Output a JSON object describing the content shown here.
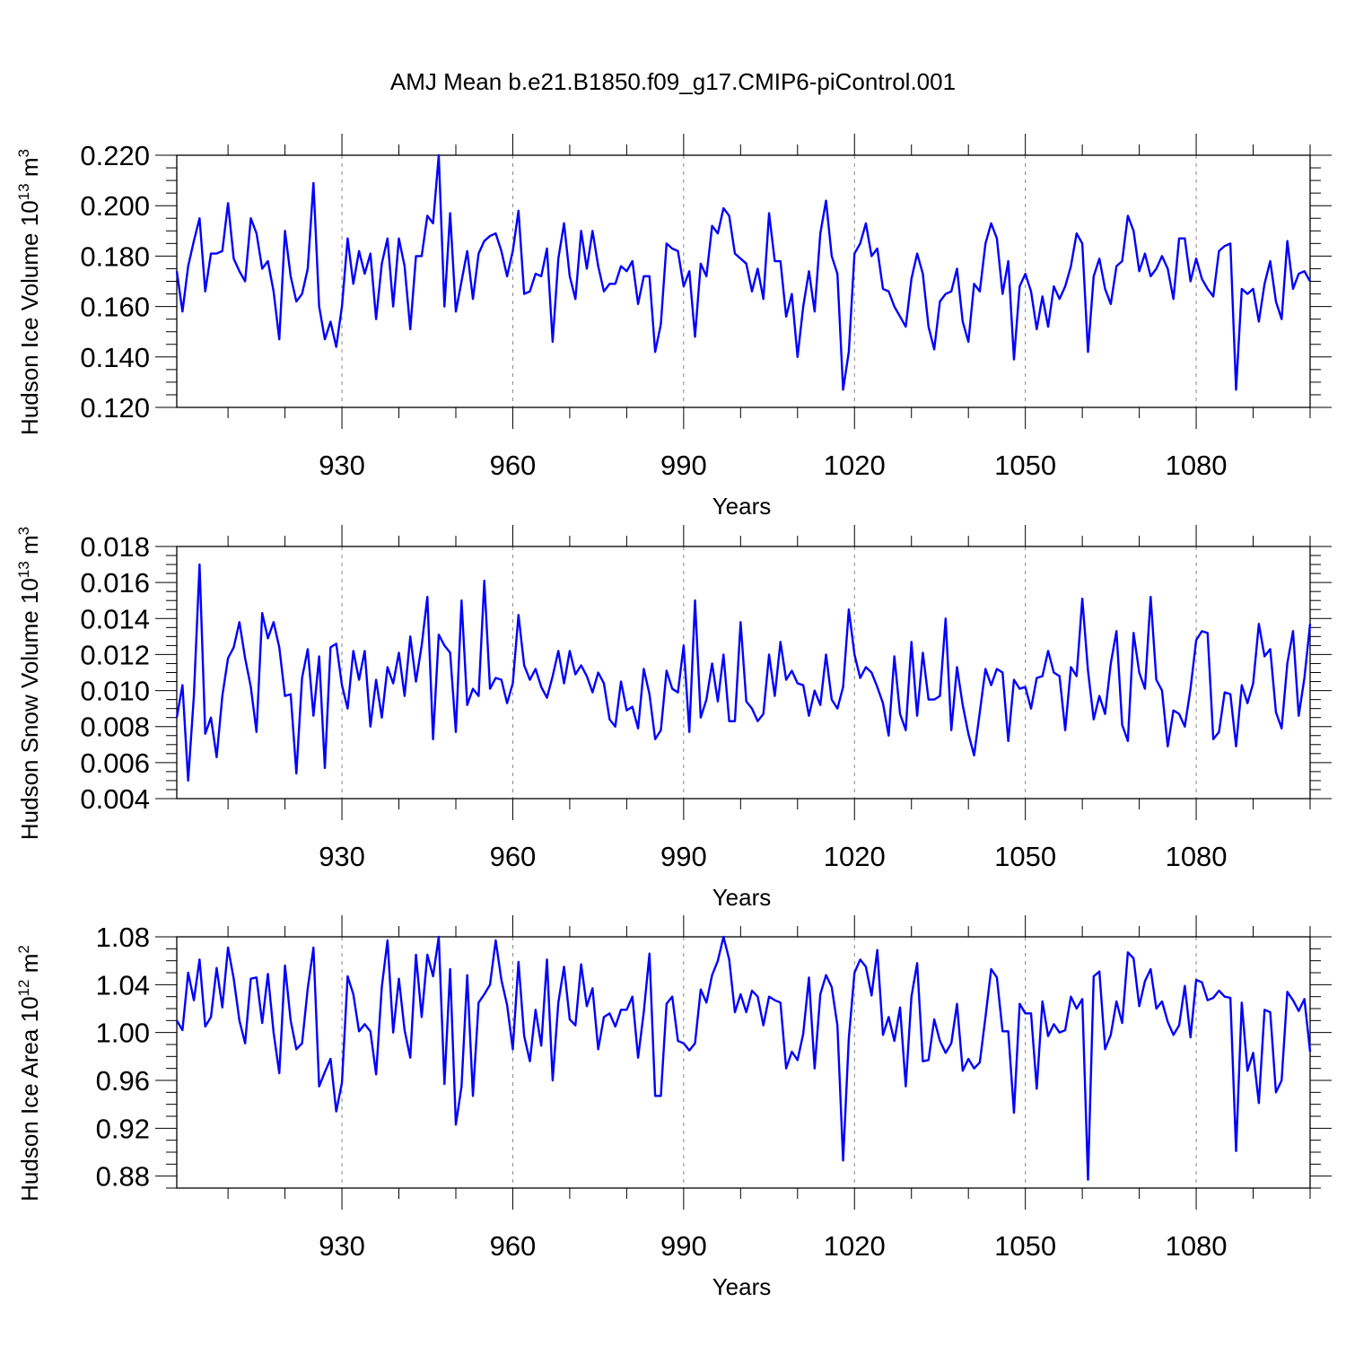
{
  "title": "AMJ Mean b.e21.B1850.f09_g17.CMIP6-piControl.001",
  "line_color": "#0000ff",
  "chart_data": [
    {
      "type": "line",
      "name": "ice-volume",
      "ylabel_main": "Hudson Ice Volume 10",
      "ylabel_exp": "13",
      "ylabel_unit": " m",
      "ylabel_unit_exp": "3",
      "xlabel": "Years",
      "xlim": [
        901,
        1100
      ],
      "ylim": [
        0.12,
        0.22
      ],
      "yticks": [
        "0.120",
        "0.140",
        "0.160",
        "0.180",
        "0.200",
        "0.220"
      ],
      "xticks": [
        "930",
        "960",
        "990",
        "1020",
        "1050",
        "1080"
      ],
      "x_start": 901,
      "values": [
        0.174,
        0.158,
        0.176,
        0.186,
        0.195,
        0.166,
        0.181,
        0.181,
        0.182,
        0.201,
        0.179,
        0.174,
        0.17,
        0.195,
        0.189,
        0.175,
        0.178,
        0.166,
        0.147,
        0.19,
        0.172,
        0.162,
        0.165,
        0.175,
        0.209,
        0.16,
        0.147,
        0.154,
        0.144,
        0.16,
        0.187,
        0.169,
        0.182,
        0.173,
        0.181,
        0.155,
        0.177,
        0.187,
        0.16,
        0.187,
        0.176,
        0.151,
        0.18,
        0.18,
        0.196,
        0.193,
        0.22,
        0.16,
        0.197,
        0.158,
        0.17,
        0.182,
        0.163,
        0.181,
        0.186,
        0.188,
        0.189,
        0.182,
        0.172,
        0.182,
        0.198,
        0.165,
        0.166,
        0.173,
        0.172,
        0.183,
        0.146,
        0.179,
        0.193,
        0.172,
        0.163,
        0.19,
        0.175,
        0.19,
        0.176,
        0.166,
        0.169,
        0.169,
        0.176,
        0.174,
        0.178,
        0.161,
        0.172,
        0.172,
        0.142,
        0.153,
        0.185,
        0.183,
        0.182,
        0.168,
        0.174,
        0.148,
        0.177,
        0.172,
        0.192,
        0.189,
        0.199,
        0.196,
        0.181,
        0.179,
        0.177,
        0.166,
        0.175,
        0.163,
        0.197,
        0.178,
        0.178,
        0.156,
        0.165,
        0.14,
        0.16,
        0.174,
        0.158,
        0.189,
        0.202,
        0.18,
        0.173,
        0.127,
        0.142,
        0.181,
        0.185,
        0.193,
        0.18,
        0.183,
        0.167,
        0.166,
        0.16,
        0.156,
        0.152,
        0.171,
        0.181,
        0.173,
        0.152,
        0.143,
        0.162,
        0.165,
        0.166,
        0.175,
        0.154,
        0.146,
        0.169,
        0.166,
        0.185,
        0.193,
        0.187,
        0.165,
        0.178,
        0.139,
        0.168,
        0.173,
        0.166,
        0.151,
        0.164,
        0.152,
        0.168,
        0.163,
        0.168,
        0.176,
        0.189,
        0.185,
        0.142,
        0.172,
        0.179,
        0.167,
        0.161,
        0.176,
        0.178,
        0.196,
        0.19,
        0.174,
        0.181,
        0.172,
        0.175,
        0.18,
        0.175,
        0.163,
        0.187,
        0.187,
        0.17,
        0.179,
        0.171,
        0.167,
        0.164,
        0.182,
        0.184,
        0.185,
        0.127,
        0.167,
        0.165,
        0.167,
        0.154,
        0.169,
        0.178,
        0.162,
        0.155,
        0.186,
        0.167,
        0.173,
        0.174,
        0.17
      ]
    },
    {
      "type": "line",
      "name": "snow-volume",
      "ylabel_main": "Hudson Snow Volume 10",
      "ylabel_exp": "13",
      "ylabel_unit": " m",
      "ylabel_unit_exp": "3",
      "xlabel": "Years",
      "xlim": [
        901,
        1100
      ],
      "ylim": [
        0.004,
        0.018
      ],
      "yticks": [
        "0.004",
        "0.006",
        "0.008",
        "0.010",
        "0.012",
        "0.014",
        "0.016",
        "0.018"
      ],
      "xticks": [
        "930",
        "960",
        "990",
        "1020",
        "1050",
        "1080"
      ],
      "x_start": 901,
      "values": [
        0.0085,
        0.0103,
        0.005,
        0.0097,
        0.017,
        0.0076,
        0.0085,
        0.0063,
        0.0097,
        0.0118,
        0.0124,
        0.0138,
        0.0118,
        0.0102,
        0.0077,
        0.0143,
        0.0129,
        0.0138,
        0.0124,
        0.0097,
        0.0098,
        0.0054,
        0.0107,
        0.0123,
        0.0086,
        0.0119,
        0.0057,
        0.0124,
        0.0126,
        0.0103,
        0.009,
        0.0122,
        0.0106,
        0.0122,
        0.008,
        0.0106,
        0.0085,
        0.0113,
        0.0104,
        0.0121,
        0.0097,
        0.013,
        0.0105,
        0.0125,
        0.0152,
        0.0073,
        0.0131,
        0.0125,
        0.0121,
        0.0077,
        0.015,
        0.0092,
        0.0101,
        0.0097,
        0.0161,
        0.0101,
        0.0107,
        0.0106,
        0.0093,
        0.0104,
        0.0142,
        0.0114,
        0.0106,
        0.0112,
        0.0102,
        0.0096,
        0.0108,
        0.0122,
        0.0104,
        0.0122,
        0.0109,
        0.0114,
        0.0108,
        0.0099,
        0.011,
        0.0104,
        0.0084,
        0.008,
        0.0105,
        0.0089,
        0.0091,
        0.0079,
        0.0112,
        0.0098,
        0.0073,
        0.0078,
        0.0111,
        0.0101,
        0.0099,
        0.0125,
        0.0077,
        0.015,
        0.0085,
        0.0095,
        0.0115,
        0.0094,
        0.012,
        0.0083,
        0.0083,
        0.0138,
        0.0094,
        0.009,
        0.0083,
        0.0087,
        0.012,
        0.0097,
        0.0127,
        0.0106,
        0.0111,
        0.0104,
        0.0103,
        0.0086,
        0.01,
        0.0092,
        0.012,
        0.0095,
        0.009,
        0.0102,
        0.0145,
        0.012,
        0.0107,
        0.0113,
        0.011,
        0.0102,
        0.0093,
        0.0075,
        0.0119,
        0.0087,
        0.0078,
        0.0127,
        0.0086,
        0.0121,
        0.0095,
        0.0095,
        0.0097,
        0.014,
        0.0078,
        0.0113,
        0.0092,
        0.0076,
        0.0064,
        0.0088,
        0.0112,
        0.0103,
        0.0112,
        0.011,
        0.0072,
        0.0106,
        0.0101,
        0.0102,
        0.009,
        0.0107,
        0.0108,
        0.0122,
        0.011,
        0.0108,
        0.0078,
        0.0113,
        0.0108,
        0.0151,
        0.0111,
        0.0084,
        0.0097,
        0.0087,
        0.0115,
        0.0133,
        0.0081,
        0.0072,
        0.0132,
        0.011,
        0.0101,
        0.0152,
        0.0106,
        0.01,
        0.0069,
        0.0089,
        0.0087,
        0.008,
        0.0101,
        0.0128,
        0.0133,
        0.0132,
        0.0073,
        0.0077,
        0.0099,
        0.0098,
        0.0069,
        0.0103,
        0.0093,
        0.0104,
        0.0137,
        0.0119,
        0.0123,
        0.0088,
        0.0079,
        0.0115,
        0.0133,
        0.0086,
        0.0107,
        0.0137
      ]
    },
    {
      "type": "line",
      "name": "ice-area",
      "ylabel_main": "Hudson Ice Area 10",
      "ylabel_exp": "12",
      "ylabel_unit": " m",
      "ylabel_unit_exp": "2",
      "xlabel": "Years",
      "xlim": [
        901,
        1100
      ],
      "ylim": [
        0.87,
        1.08
      ],
      "yticks": [
        "0.88",
        "0.92",
        "0.96",
        "1.00",
        "1.04",
        "1.08"
      ],
      "xticks": [
        "930",
        "960",
        "990",
        "1020",
        "1050",
        "1080"
      ],
      "x_start": 901,
      "values": [
        1.01,
        1.002,
        1.05,
        1.027,
        1.061,
        1.005,
        1.013,
        1.054,
        1.021,
        1.071,
        1.045,
        1.01,
        0.991,
        1.045,
        1.046,
        1.008,
        1.049,
        1.0,
        0.966,
        1.056,
        1.01,
        0.986,
        0.991,
        1.037,
        1.071,
        0.955,
        0.967,
        0.978,
        0.934,
        0.958,
        1.047,
        1.032,
        1.001,
        1.007,
        1.001,
        0.965,
        1.038,
        1.077,
        1.0,
        1.045,
        1.002,
        0.979,
        1.065,
        1.013,
        1.065,
        1.047,
        1.08,
        0.957,
        1.053,
        0.923,
        0.955,
        1.048,
        0.947,
        1.025,
        1.032,
        1.04,
        1.077,
        1.044,
        1.023,
        0.986,
        1.059,
        0.997,
        0.976,
        1.019,
        0.989,
        1.061,
        0.96,
        1.025,
        1.055,
        1.011,
        1.006,
        1.057,
        1.022,
        1.037,
        0.986,
        1.013,
        1.016,
        1.005,
        1.019,
        1.019,
        1.03,
        0.979,
        1.017,
        1.066,
        0.947,
        0.947,
        1.024,
        1.03,
        0.993,
        0.991,
        0.985,
        0.991,
        1.036,
        1.025,
        1.048,
        1.06,
        1.08,
        1.061,
        1.017,
        1.032,
        1.017,
        1.035,
        1.03,
        1.006,
        1.03,
        1.027,
        1.025,
        0.97,
        0.984,
        0.977,
        0.999,
        1.046,
        0.97,
        1.032,
        1.048,
        1.038,
        1.006,
        0.893,
        0.995,
        1.05,
        1.061,
        1.055,
        1.031,
        1.069,
        0.998,
        1.013,
        0.993,
        1.021,
        0.955,
        1.03,
        1.058,
        0.976,
        0.977,
        1.011,
        0.993,
        0.983,
        0.991,
        1.024,
        0.968,
        0.978,
        0.97,
        0.975,
        1.013,
        1.053,
        1.046,
        1.001,
        1.001,
        0.933,
        1.024,
        1.016,
        1.016,
        0.953,
        1.026,
        0.997,
        1.007,
        1.0,
        1.002,
        1.03,
        1.02,
        1.028,
        0.877,
        1.047,
        1.051,
        0.986,
        0.998,
        1.026,
        1.008,
        1.067,
        1.062,
        1.022,
        1.043,
        1.053,
        1.02,
        1.026,
        1.009,
        0.998,
        1.006,
        1.039,
        0.996,
        1.044,
        1.042,
        1.027,
        1.029,
        1.035,
        1.03,
        1.029,
        0.901,
        1.025,
        0.968,
        0.983,
        0.941,
        1.019,
        1.017,
        0.95,
        0.96,
        1.034,
        1.027,
        1.018,
        1.028,
        0.984
      ]
    }
  ]
}
